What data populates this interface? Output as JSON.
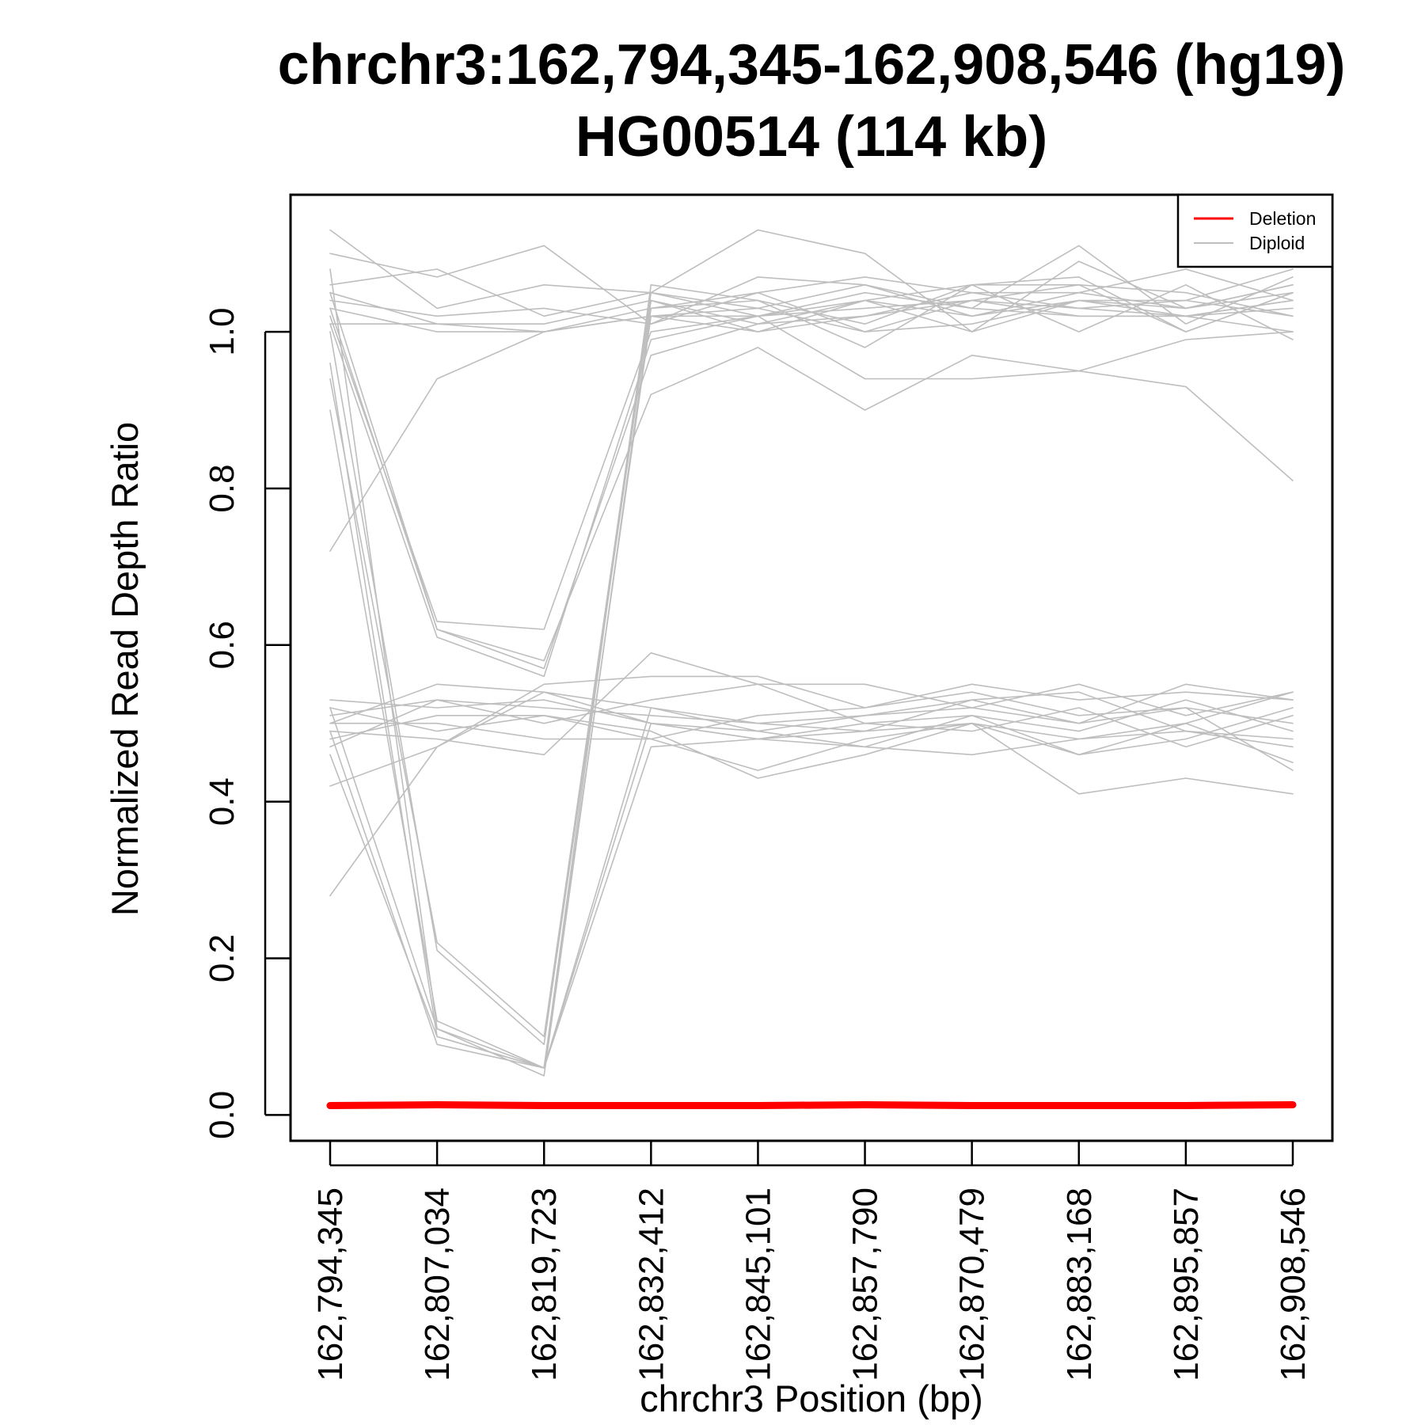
{
  "chart_data": {
    "type": "line",
    "title": "chrchr3:162,794,345-162,908,546 (hg19)",
    "subtitle": "HG00514 (114 kb)",
    "xlabel": "chrchr3 Position (bp)",
    "ylabel": "Normalized Read Depth Ratio",
    "ylim": [
      -0.033,
      1.175
    ],
    "yticks": [
      "0.0",
      "0.2",
      "0.4",
      "0.6",
      "0.8",
      "1.0"
    ],
    "x": [
      "162,794,345",
      "162,807,034",
      "162,819,723",
      "162,832,412",
      "162,845,101",
      "162,857,790",
      "162,870,479",
      "162,883,168",
      "162,895,857",
      "162,908,546"
    ],
    "grid": false,
    "legend": {
      "position": "top-right",
      "entries": [
        {
          "label": "Deletion",
          "color": "#ff0000"
        },
        {
          "label": "Diploid",
          "color": "#bebebe"
        }
      ]
    },
    "colors": {
      "deletion": "#ff0000",
      "diploid": "#bebebe"
    },
    "series": [
      {
        "group": "Deletion",
        "values": [
          0.012,
          0.013,
          0.012,
          0.012,
          0.012,
          0.013,
          0.012,
          0.012,
          0.012,
          0.013
        ]
      },
      {
        "group": "Diploid",
        "values": [
          1.13,
          1.03,
          1.06,
          1.05,
          1.02,
          1.04,
          1.06,
          1.07,
          1.0,
          1.05
        ]
      },
      {
        "group": "Diploid",
        "values": [
          1.1,
          1.07,
          1.11,
          1.01,
          1.07,
          1.06,
          1.03,
          1.11,
          1.01,
          1.07
        ]
      },
      {
        "group": "Diploid",
        "values": [
          1.06,
          1.08,
          1.02,
          1.05,
          1.13,
          1.1,
          1.0,
          1.09,
          1.03,
          1.06
        ]
      },
      {
        "group": "Diploid",
        "values": [
          1.04,
          1.02,
          1.03,
          1.01,
          1.05,
          1.07,
          1.05,
          1.05,
          1.08,
          1.04
        ]
      },
      {
        "group": "Diploid",
        "values": [
          1.01,
          1.01,
          1.0,
          1.02,
          1.0,
          1.04,
          1.02,
          1.04,
          1.02,
          1.0
        ]
      },
      {
        "group": "Diploid",
        "values": [
          1.03,
          1.0,
          1.0,
          1.03,
          1.04,
          0.98,
          1.06,
          1.0,
          1.06,
          0.99
        ]
      },
      {
        "group": "Diploid",
        "values": [
          1.05,
          1.01,
          1.01,
          1.04,
          1.01,
          1.02,
          1.04,
          1.06,
          1.0,
          1.05
        ]
      },
      {
        "group": "Diploid",
        "values": [
          0.72,
          0.94,
          1.0,
          1.02,
          1.03,
          1.0,
          1.04,
          1.03,
          1.04,
          1.08
        ]
      },
      {
        "group": "Diploid",
        "values": [
          1.02,
          0.63,
          0.62,
          1.0,
          1.02,
          0.94,
          0.94,
          0.95,
          0.93,
          0.81
        ]
      },
      {
        "group": "Diploid",
        "values": [
          1.05,
          0.62,
          0.58,
          0.92,
          0.98,
          0.9,
          0.97,
          0.95,
          0.99,
          1.0
        ]
      },
      {
        "group": "Diploid",
        "values": [
          1.03,
          0.62,
          0.57,
          0.97,
          1.01,
          1.04,
          1.0,
          1.04,
          1.04,
          1.02
        ]
      },
      {
        "group": "Diploid",
        "values": [
          1.01,
          0.61,
          0.56,
          0.99,
          1.02,
          1.05,
          1.03,
          1.02,
          1.02,
          1.04
        ]
      },
      {
        "group": "Diploid",
        "values": [
          0.94,
          0.22,
          0.1,
          1.05,
          1.03,
          1.06,
          1.02,
          1.05,
          1.03,
          1.05
        ]
      },
      {
        "group": "Diploid",
        "values": [
          1.0,
          0.21,
          0.09,
          1.04,
          1.0,
          1.02,
          1.05,
          1.03,
          1.02,
          1.03
        ]
      },
      {
        "group": "Diploid",
        "values": [
          0.9,
          0.12,
          0.06,
          1.06,
          1.04,
          1.01,
          1.06,
          1.06,
          1.05,
          1.02
        ]
      },
      {
        "group": "Diploid",
        "values": [
          1.08,
          0.11,
          0.05,
          1.03,
          1.05,
          1.0,
          1.01,
          1.04,
          1.03,
          1.06
        ]
      },
      {
        "group": "Diploid",
        "values": [
          0.96,
          0.1,
          0.06,
          1.02,
          1.02,
          1.03,
          1.04,
          1.02,
          1.02,
          1.04
        ]
      },
      {
        "group": "Diploid",
        "values": [
          0.52,
          0.11,
          0.06,
          0.52,
          0.5,
          0.51,
          0.52,
          0.5,
          0.52,
          0.5
        ]
      },
      {
        "group": "Diploid",
        "values": [
          0.49,
          0.09,
          0.06,
          0.47,
          0.48,
          0.49,
          0.5,
          0.48,
          0.49,
          0.48
        ]
      },
      {
        "group": "Diploid",
        "values": [
          0.46,
          0.1,
          0.06,
          0.5,
          0.49,
          0.47,
          0.51,
          0.46,
          0.48,
          0.52
        ]
      },
      {
        "group": "Diploid",
        "values": [
          0.5,
          0.55,
          0.54,
          0.52,
          0.49,
          0.51,
          0.53,
          0.5,
          0.55,
          0.53
        ]
      },
      {
        "group": "Diploid",
        "values": [
          0.51,
          0.53,
          0.5,
          0.53,
          0.55,
          0.55,
          0.52,
          0.55,
          0.51,
          0.54
        ]
      },
      {
        "group": "Diploid",
        "values": [
          0.48,
          0.51,
          0.51,
          0.49,
          0.43,
          0.46,
          0.5,
          0.46,
          0.5,
          0.45
        ]
      },
      {
        "group": "Diploid",
        "values": [
          0.42,
          0.47,
          0.54,
          0.5,
          0.48,
          0.5,
          0.49,
          0.52,
          0.47,
          0.51
        ]
      },
      {
        "group": "Diploid",
        "values": [
          0.28,
          0.47,
          0.55,
          0.56,
          0.56,
          0.52,
          0.55,
          0.53,
          0.54,
          0.53
        ]
      },
      {
        "group": "Diploid",
        "values": [
          0.49,
          0.48,
          0.46,
          0.59,
          0.55,
          0.5,
          0.51,
          0.49,
          0.53,
          0.49
        ]
      },
      {
        "group": "Diploid",
        "values": [
          0.5,
          0.5,
          0.48,
          0.48,
          0.44,
          0.48,
          0.5,
          0.41,
          0.43,
          0.41
        ]
      },
      {
        "group": "Diploid",
        "values": [
          0.53,
          0.52,
          0.53,
          0.5,
          0.48,
          0.47,
          0.46,
          0.48,
          0.5,
          0.54
        ]
      },
      {
        "group": "Diploid",
        "values": [
          0.47,
          0.53,
          0.52,
          0.51,
          0.5,
          0.49,
          0.53,
          0.54,
          0.49,
          0.47
        ]
      },
      {
        "group": "Diploid",
        "values": [
          0.52,
          0.49,
          0.51,
          0.48,
          0.51,
          0.52,
          0.54,
          0.51,
          0.52,
          0.44
        ]
      }
    ]
  }
}
